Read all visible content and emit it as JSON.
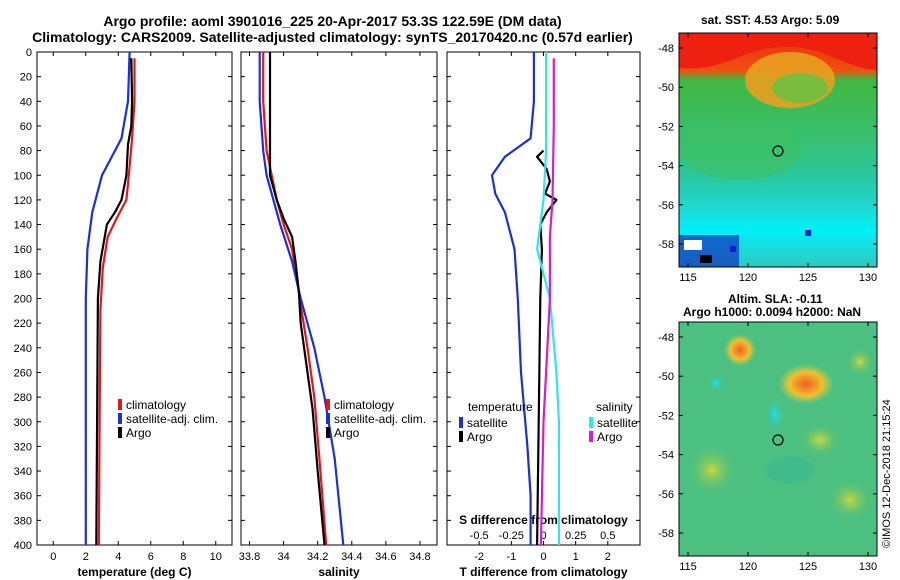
{
  "header": {
    "title_line1": "Argo profile: aoml 3901016_225 20-Apr-2017 53.3S 122.59E (DM data)",
    "title_line2": "Climatology: CARS2009. Satellite-adjusted climatology: synTS_20170420.nc (0.57d earlier)"
  },
  "colors": {
    "climatology": "#e8141c",
    "satellite": "#1a2fd6",
    "argo": "#000000",
    "sat_salinity": "#2ee6f0",
    "argo_salinity": "#d61ad6"
  },
  "chart_data": [
    {
      "type": "line",
      "title": "",
      "xlabel": "temperature (deg C)",
      "ylabel": "",
      "xlim": [
        -1,
        11
      ],
      "ylim": [
        400,
        0
      ],
      "xticks": [
        "0",
        "2",
        "4",
        "6",
        "8",
        "10"
      ],
      "yticks": [
        "0",
        "20",
        "40",
        "60",
        "80",
        "100",
        "120",
        "140",
        "160",
        "180",
        "200",
        "220",
        "240",
        "260",
        "280",
        "300",
        "320",
        "340",
        "360",
        "380",
        "400"
      ],
      "legend": {
        "placement": "middle-right",
        "entries": [
          "climatology",
          "satellite-adj. clim.",
          "Argo"
        ]
      },
      "series": [
        {
          "name": "climatology",
          "color": "#e8141c",
          "points": [
            [
              5.0,
              5
            ],
            [
              5.0,
              40
            ],
            [
              4.85,
              70
            ],
            [
              4.65,
              100
            ],
            [
              4.5,
              120
            ],
            [
              3.9,
              135
            ],
            [
              3.35,
              150
            ],
            [
              3.05,
              175
            ],
            [
              2.9,
              210
            ],
            [
              2.85,
              300
            ],
            [
              2.8,
              400
            ]
          ]
        },
        {
          "name": "satellite-adj. clim.",
          "color": "#1a2fd6",
          "points": [
            [
              4.7,
              0
            ],
            [
              4.6,
              40
            ],
            [
              4.2,
              70
            ],
            [
              3.6,
              85
            ],
            [
              3.0,
              100
            ],
            [
              2.4,
              130
            ],
            [
              2.1,
              160
            ],
            [
              2.0,
              200
            ],
            [
              2.0,
              260
            ],
            [
              2.0,
              400
            ]
          ]
        },
        {
          "name": "Argo",
          "color": "#000000",
          "points": [
            [
              4.8,
              5
            ],
            [
              4.85,
              40
            ],
            [
              4.8,
              60
            ],
            [
              4.6,
              75
            ],
            [
              4.5,
              100
            ],
            [
              4.2,
              120
            ],
            [
              3.8,
              130
            ],
            [
              3.3,
              140
            ],
            [
              2.9,
              170
            ],
            [
              2.75,
              200
            ],
            [
              2.7,
              300
            ],
            [
              2.65,
              400
            ]
          ]
        }
      ]
    },
    {
      "type": "line",
      "title": "",
      "xlabel": "salinity",
      "ylabel": "",
      "xlim": [
        33.75,
        34.9
      ],
      "ylim": [
        400,
        0
      ],
      "xticks": [
        "33.8",
        "34",
        "34.2",
        "34.4",
        "34.6",
        "34.8"
      ],
      "legend": {
        "placement": "middle-right",
        "entries": [
          "climatology",
          "satellite-adj. clim.",
          "Argo"
        ]
      },
      "series": [
        {
          "name": "climatology",
          "color": "#e8141c",
          "points": [
            [
              33.88,
              0
            ],
            [
              33.88,
              40
            ],
            [
              33.9,
              80
            ],
            [
              33.93,
              100
            ],
            [
              33.96,
              120
            ],
            [
              34.0,
              140
            ],
            [
              34.05,
              160
            ],
            [
              34.08,
              185
            ],
            [
              34.1,
              205
            ],
            [
              34.14,
              240
            ],
            [
              34.18,
              280
            ],
            [
              34.21,
              330
            ],
            [
              34.25,
              400
            ]
          ]
        },
        {
          "name": "satellite-adj. clim.",
          "color": "#1a2fd6",
          "points": [
            [
              33.86,
              0
            ],
            [
              33.86,
              40
            ],
            [
              33.88,
              80
            ],
            [
              33.9,
              100
            ],
            [
              33.94,
              120
            ],
            [
              33.98,
              140
            ],
            [
              34.05,
              170
            ],
            [
              34.1,
              200
            ],
            [
              34.18,
              240
            ],
            [
              34.24,
              280
            ],
            [
              34.3,
              330
            ],
            [
              34.35,
              400
            ]
          ]
        },
        {
          "name": "Argo",
          "color": "#000000",
          "points": [
            [
              33.92,
              0
            ],
            [
              33.92,
              60
            ],
            [
              33.92,
              100
            ],
            [
              33.96,
              120
            ],
            [
              34.0,
              135
            ],
            [
              34.05,
              150
            ],
            [
              34.07,
              170
            ],
            [
              34.09,
              195
            ],
            [
              34.1,
              220
            ],
            [
              34.13,
              250
            ],
            [
              34.17,
              290
            ],
            [
              34.2,
              340
            ],
            [
              34.24,
              400
            ]
          ]
        }
      ]
    },
    {
      "type": "line",
      "title": "",
      "xlabel": "T difference from climatology",
      "ylabel": "",
      "xlim": [
        -3,
        3
      ],
      "ylim": [
        400,
        0
      ],
      "xticks": [
        "-2",
        "-1",
        "0",
        "1",
        "2"
      ],
      "secondary_xlabel": "S difference from climatology",
      "secondary_xticks": [
        "-0.5",
        "-0.25",
        "0",
        "0.25",
        "0.5"
      ],
      "legend": {
        "placement": "middle",
        "entries": [
          "temperature",
          "satellite",
          "Argo",
          "salinity",
          "satellite",
          "Argo"
        ]
      },
      "series": [
        {
          "name": "temperature satellite",
          "color": "#1a2fd6",
          "axis": "T",
          "points": [
            [
              -0.3,
              0
            ],
            [
              -0.3,
              40
            ],
            [
              -0.4,
              70
            ],
            [
              -1.2,
              85
            ],
            [
              -1.6,
              100
            ],
            [
              -1.5,
              115
            ],
            [
              -1.2,
              130
            ],
            [
              -0.9,
              160
            ],
            [
              -0.8,
              200
            ],
            [
              -0.7,
              260
            ],
            [
              -0.5,
              320
            ],
            [
              -0.4,
              360
            ],
            [
              -0.4,
              400
            ]
          ]
        },
        {
          "name": "temperature Argo",
          "color": "#000000",
          "axis": "T",
          "points": [
            [
              0.0,
              80
            ],
            [
              -0.2,
              85
            ],
            [
              0.1,
              95
            ],
            [
              0.2,
              105
            ],
            [
              0.05,
              115
            ],
            [
              0.4,
              120
            ],
            [
              0.1,
              130
            ],
            [
              -0.1,
              140
            ],
            [
              -0.05,
              160
            ],
            [
              -0.1,
              200
            ],
            [
              -0.15,
              300
            ],
            [
              -0.2,
              400
            ]
          ]
        },
        {
          "name": "salinity satellite",
          "color": "#2ee6f0",
          "axis": "S",
          "points": [
            [
              0.02,
              0
            ],
            [
              0.02,
              80
            ],
            [
              0.0,
              120
            ],
            [
              -0.05,
              160
            ],
            [
              0.05,
              200
            ],
            [
              0.1,
              260
            ],
            [
              0.12,
              300
            ],
            [
              0.12,
              400
            ]
          ]
        },
        {
          "name": "salinity Argo",
          "color": "#d61ad6",
          "axis": "S",
          "points": [
            [
              0.08,
              5
            ],
            [
              0.08,
              60
            ],
            [
              0.07,
              120
            ],
            [
              0.05,
              150
            ],
            [
              0.05,
              200
            ],
            [
              0.02,
              260
            ],
            [
              0.0,
              300
            ],
            [
              -0.02,
              400
            ]
          ]
        }
      ]
    }
  ],
  "maps": {
    "sst_title": "sat. SST: 4.53 Argo: 5.09",
    "sla_title1": "Altim. SLA: -0.11",
    "sla_title2": "Argo h1000: 0.0094 h2000: NaN",
    "lat_ticks": [
      "-48",
      "-50",
      "-52",
      "-54",
      "-56",
      "-58"
    ],
    "lon_ticks": [
      "115",
      "120",
      "125",
      "130"
    ],
    "watermark": "©IMOS 12-Dec-2018 21:15:24"
  }
}
